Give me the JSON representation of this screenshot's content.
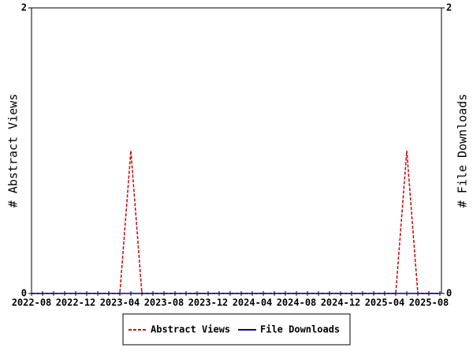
{
  "chart_data": {
    "type": "line",
    "categories": [
      "2022-08",
      null,
      null,
      null,
      "2022-12",
      null,
      null,
      null,
      "2023-04",
      null,
      null,
      null,
      "2023-08",
      null,
      null,
      null,
      "2023-12",
      null,
      null,
      null,
      "2024-04",
      null,
      null,
      null,
      "2024-08",
      null,
      null,
      null,
      "2024-12",
      null,
      null,
      null,
      "2025-04",
      null,
      null,
      null,
      "2025-08",
      null
    ],
    "series": [
      {
        "name": "Abstract Views",
        "color": "#cc0000",
        "dashed": true,
        "axis": "y",
        "values": [
          0,
          0,
          0,
          0,
          0,
          0,
          0,
          0,
          0,
          1,
          0,
          0,
          0,
          0,
          0,
          0,
          0,
          0,
          0,
          0,
          0,
          0,
          0,
          0,
          0,
          0,
          0,
          0,
          0,
          0,
          0,
          0,
          0,
          0,
          1,
          0,
          0,
          0
        ]
      },
      {
        "name": "File Downloads",
        "color": "#00008b",
        "dashed": false,
        "axis": "y2",
        "values": [
          0,
          0,
          0,
          0,
          0,
          0,
          0,
          0,
          0,
          0,
          0,
          0,
          0,
          0,
          0,
          0,
          0,
          0,
          0,
          0,
          0,
          0,
          0,
          0,
          0,
          0,
          0,
          0,
          0,
          0,
          0,
          0,
          0,
          0,
          0,
          0,
          0,
          0
        ]
      }
    ],
    "ylabel": "# Abstract Views",
    "y2label": "# File Downloads",
    "ylim": [
      0,
      2
    ],
    "yticks": [
      0,
      2
    ],
    "y2lim": [
      0,
      2
    ],
    "y2ticks": [
      0,
      2
    ]
  }
}
